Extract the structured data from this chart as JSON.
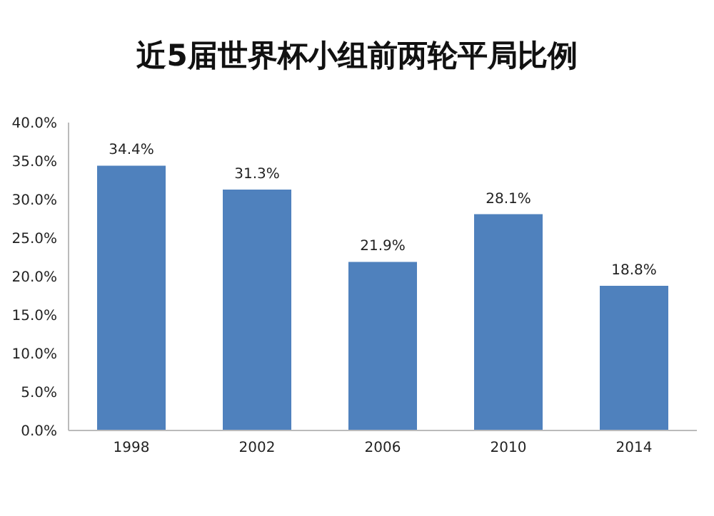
{
  "chart_data": {
    "type": "bar",
    "title": "近5届世界杯小组前两轮平局比例",
    "categories": [
      "1998",
      "2002",
      "2006",
      "2010",
      "2014"
    ],
    "values": [
      34.4,
      31.3,
      21.9,
      28.1,
      18.8
    ],
    "value_labels": [
      "34.4%",
      "31.3%",
      "21.9%",
      "28.1%",
      "18.8%"
    ],
    "color": "#4f81bd",
    "ylim": [
      0,
      40
    ],
    "yticks": [
      {
        "value": 0,
        "label": "0.0%"
      },
      {
        "value": 5,
        "label": "5.0%"
      },
      {
        "value": 10,
        "label": "10.0%"
      },
      {
        "value": 15,
        "label": "15.0%"
      },
      {
        "value": 20,
        "label": "20.0%"
      },
      {
        "value": 25,
        "label": "25.0%"
      },
      {
        "value": 30,
        "label": "30.0%"
      },
      {
        "value": 35,
        "label": "35.0%"
      },
      {
        "value": 40,
        "label": "40.0%"
      }
    ]
  }
}
